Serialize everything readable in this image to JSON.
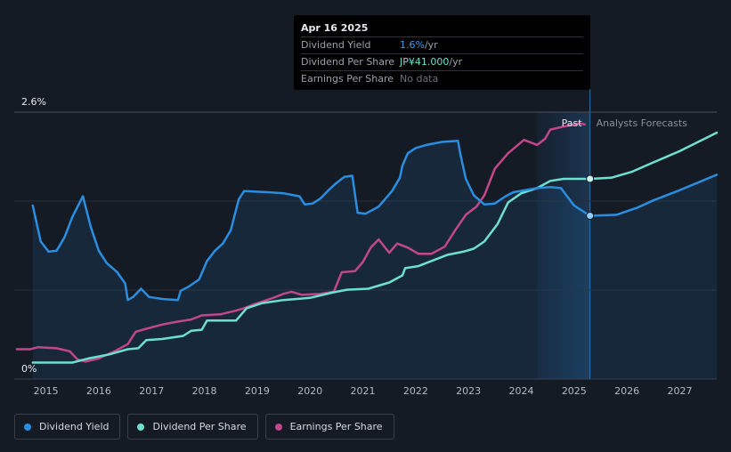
{
  "tooltip": {
    "date": "Apr 16 2025",
    "rows": [
      {
        "name": "Dividend Yield",
        "value": "1.6%",
        "unit": " /yr"
      },
      {
        "name": "Dividend Per Share",
        "value": "JP¥41.000",
        "unit": " /yr"
      },
      {
        "name": "Earnings Per Share",
        "value": "No data",
        "unit": ""
      }
    ]
  },
  "legend": [
    {
      "label": "Dividend Yield",
      "color": "#2a8ee0"
    },
    {
      "label": "Dividend Per Share",
      "color": "#6de0d0"
    },
    {
      "label": "Earnings Per Share",
      "color": "#c2478a"
    }
  ],
  "chart_data": {
    "type": "line",
    "x_ticks": [
      "2015",
      "2016",
      "2017",
      "2018",
      "2019",
      "2020",
      "2021",
      "2022",
      "2023",
      "2024",
      "2025",
      "2026",
      "2027"
    ],
    "y_ticks": [
      "2.6%",
      "0%"
    ],
    "ylim": [
      0,
      2.6
    ],
    "xlim": [
      2014.4,
      2027.7
    ],
    "regions": {
      "past_label": "Past",
      "forecast_label": "Analysts Forecasts",
      "past_end": 2025.3,
      "highlight_start": 2024.3
    },
    "colors": {
      "dividend_yield": "#2a8ee0",
      "dividend_per_share": "#6de0d0",
      "earnings_per_share": "#c2478a"
    },
    "series": [
      {
        "name": "Dividend Yield",
        "points": [
          [
            2014.75,
            1.69
          ],
          [
            2014.9,
            1.34
          ],
          [
            2015.05,
            1.24
          ],
          [
            2015.2,
            1.25
          ],
          [
            2015.35,
            1.38
          ],
          [
            2015.5,
            1.58
          ],
          [
            2015.7,
            1.78
          ],
          [
            2015.85,
            1.48
          ],
          [
            2016.0,
            1.25
          ],
          [
            2016.15,
            1.13
          ],
          [
            2016.35,
            1.04
          ],
          [
            2016.5,
            0.93
          ],
          [
            2016.55,
            0.77
          ],
          [
            2016.65,
            0.8
          ],
          [
            2016.8,
            0.88
          ],
          [
            2016.95,
            0.8
          ],
          [
            2017.2,
            0.78
          ],
          [
            2017.5,
            0.77
          ],
          [
            2017.55,
            0.86
          ],
          [
            2017.7,
            0.9
          ],
          [
            2017.9,
            0.97
          ],
          [
            2018.05,
            1.15
          ],
          [
            2018.2,
            1.25
          ],
          [
            2018.35,
            1.32
          ],
          [
            2018.5,
            1.45
          ],
          [
            2018.65,
            1.75
          ],
          [
            2018.75,
            1.83
          ],
          [
            2019.2,
            1.82
          ],
          [
            2019.5,
            1.81
          ],
          [
            2019.8,
            1.78
          ],
          [
            2019.9,
            1.7
          ],
          [
            2020.05,
            1.71
          ],
          [
            2020.2,
            1.76
          ],
          [
            2020.35,
            1.84
          ],
          [
            2020.5,
            1.91
          ],
          [
            2020.65,
            1.97
          ],
          [
            2020.8,
            1.98
          ],
          [
            2020.9,
            1.62
          ],
          [
            2021.05,
            1.61
          ],
          [
            2021.3,
            1.68
          ],
          [
            2021.55,
            1.83
          ],
          [
            2021.7,
            1.96
          ],
          [
            2021.75,
            2.08
          ],
          [
            2021.85,
            2.2
          ],
          [
            2022.0,
            2.25
          ],
          [
            2022.2,
            2.28
          ],
          [
            2022.5,
            2.31
          ],
          [
            2022.8,
            2.32
          ],
          [
            2022.85,
            2.18
          ],
          [
            2022.95,
            1.95
          ],
          [
            2023.1,
            1.79
          ],
          [
            2023.3,
            1.7
          ],
          [
            2023.5,
            1.71
          ],
          [
            2023.7,
            1.78
          ],
          [
            2023.85,
            1.82
          ],
          [
            2024.3,
            1.86
          ],
          [
            2024.55,
            1.87
          ],
          [
            2024.75,
            1.86
          ],
          [
            2025.0,
            1.69
          ],
          [
            2025.3,
            1.59
          ],
          [
            2025.8,
            1.6
          ],
          [
            2026.2,
            1.67
          ],
          [
            2026.5,
            1.74
          ],
          [
            2027.0,
            1.84
          ],
          [
            2027.7,
            1.99
          ]
        ]
      },
      {
        "name": "Dividend Per Share",
        "points": [
          [
            2014.75,
            0.16
          ],
          [
            2015.5,
            0.16
          ],
          [
            2015.8,
            0.2
          ],
          [
            2016.2,
            0.24
          ],
          [
            2016.55,
            0.29
          ],
          [
            2016.75,
            0.3
          ],
          [
            2016.9,
            0.38
          ],
          [
            2017.2,
            0.39
          ],
          [
            2017.6,
            0.42
          ],
          [
            2017.75,
            0.47
          ],
          [
            2017.95,
            0.48
          ],
          [
            2018.05,
            0.57
          ],
          [
            2018.6,
            0.57
          ],
          [
            2018.8,
            0.69
          ],
          [
            2019.1,
            0.74
          ],
          [
            2019.5,
            0.77
          ],
          [
            2020.0,
            0.79
          ],
          [
            2020.4,
            0.84
          ],
          [
            2020.7,
            0.87
          ],
          [
            2021.1,
            0.88
          ],
          [
            2021.5,
            0.94
          ],
          [
            2021.75,
            1.01
          ],
          [
            2021.8,
            1.08
          ],
          [
            2022.05,
            1.1
          ],
          [
            2022.3,
            1.15
          ],
          [
            2022.6,
            1.21
          ],
          [
            2022.9,
            1.24
          ],
          [
            2023.1,
            1.27
          ],
          [
            2023.3,
            1.34
          ],
          [
            2023.55,
            1.51
          ],
          [
            2023.75,
            1.72
          ],
          [
            2024.0,
            1.81
          ],
          [
            2024.3,
            1.86
          ],
          [
            2024.55,
            1.93
          ],
          [
            2024.8,
            1.95
          ],
          [
            2025.3,
            1.95
          ],
          [
            2025.7,
            1.96
          ],
          [
            2026.1,
            2.02
          ],
          [
            2026.5,
            2.11
          ],
          [
            2027.0,
            2.22
          ],
          [
            2027.7,
            2.4
          ]
        ]
      },
      {
        "name": "Earnings Per Share",
        "points": [
          [
            2014.45,
            0.29
          ],
          [
            2014.7,
            0.29
          ],
          [
            2014.85,
            0.31
          ],
          [
            2015.2,
            0.3
          ],
          [
            2015.45,
            0.27
          ],
          [
            2015.6,
            0.19
          ],
          [
            2015.75,
            0.17
          ],
          [
            2016.0,
            0.2
          ],
          [
            2016.3,
            0.27
          ],
          [
            2016.55,
            0.34
          ],
          [
            2016.7,
            0.46
          ],
          [
            2016.9,
            0.49
          ],
          [
            2017.2,
            0.53
          ],
          [
            2017.5,
            0.56
          ],
          [
            2017.75,
            0.58
          ],
          [
            2017.95,
            0.62
          ],
          [
            2018.3,
            0.63
          ],
          [
            2018.55,
            0.66
          ],
          [
            2018.75,
            0.69
          ],
          [
            2018.95,
            0.73
          ],
          [
            2019.3,
            0.79
          ],
          [
            2019.5,
            0.83
          ],
          [
            2019.65,
            0.85
          ],
          [
            2019.85,
            0.82
          ],
          [
            2020.2,
            0.83
          ],
          [
            2020.45,
            0.85
          ],
          [
            2020.6,
            1.04
          ],
          [
            2020.85,
            1.05
          ],
          [
            2021.0,
            1.14
          ],
          [
            2021.15,
            1.28
          ],
          [
            2021.3,
            1.36
          ],
          [
            2021.5,
            1.23
          ],
          [
            2021.65,
            1.32
          ],
          [
            2021.85,
            1.28
          ],
          [
            2022.05,
            1.22
          ],
          [
            2022.3,
            1.22
          ],
          [
            2022.55,
            1.29
          ],
          [
            2022.75,
            1.45
          ],
          [
            2022.95,
            1.6
          ],
          [
            2023.15,
            1.68
          ],
          [
            2023.3,
            1.79
          ],
          [
            2023.5,
            2.05
          ],
          [
            2023.75,
            2.2
          ],
          [
            2024.05,
            2.33
          ],
          [
            2024.3,
            2.28
          ],
          [
            2024.45,
            2.34
          ],
          [
            2024.55,
            2.43
          ],
          [
            2024.8,
            2.46
          ],
          [
            2025.1,
            2.49
          ],
          [
            2025.2,
            2.48
          ]
        ]
      }
    ],
    "markers": [
      {
        "series": "Dividend Per Share",
        "x": 2025.3,
        "y": 1.95
      },
      {
        "series": "Dividend Yield",
        "x": 2025.3,
        "y": 1.59
      }
    ]
  }
}
